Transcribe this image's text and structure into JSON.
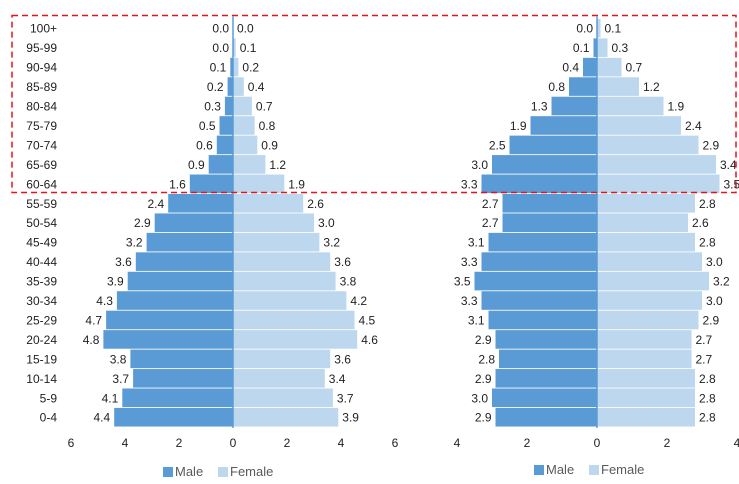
{
  "chart_data": [
    {
      "type": "bar",
      "orientation": "horizontal",
      "categories": [
        "0-4",
        "5-9",
        "10-14",
        "15-19",
        "20-24",
        "25-29",
        "30-34",
        "35-39",
        "40-44",
        "45-49",
        "50-54",
        "55-59",
        "60-64",
        "65-69",
        "70-74",
        "75-79",
        "80-84",
        "85-89",
        "90-94",
        "95-99",
        "100+"
      ],
      "series": [
        {
          "name": "Male",
          "values": [
            4.4,
            4.1,
            3.7,
            3.8,
            4.8,
            4.7,
            4.3,
            3.9,
            3.6,
            3.2,
            2.9,
            2.4,
            1.6,
            0.9,
            0.6,
            0.5,
            0.3,
            0.2,
            0.1,
            0.0,
            0.0
          ]
        },
        {
          "name": "Female",
          "values": [
            3.9,
            3.7,
            3.4,
            3.6,
            4.6,
            4.5,
            4.2,
            3.8,
            3.6,
            3.2,
            3.0,
            2.6,
            1.9,
            1.2,
            0.9,
            0.8,
            0.7,
            0.4,
            0.2,
            0.1,
            0.0
          ]
        }
      ],
      "xticks": [
        "6",
        "4",
        "2",
        "0",
        "2",
        "4",
        "6"
      ],
      "xlim": [
        -6,
        6
      ],
      "legend": [
        "Male",
        "Female"
      ],
      "legend_position": "bottom",
      "colors": {
        "male": "#5b9bd5",
        "female": "#bdd7ee"
      }
    },
    {
      "type": "bar",
      "orientation": "horizontal",
      "categories": [
        "0-4",
        "5-9",
        "10-14",
        "15-19",
        "20-24",
        "25-29",
        "30-34",
        "35-39",
        "40-44",
        "45-49",
        "50-54",
        "55-59",
        "60-64",
        "65-69",
        "70-74",
        "75-79",
        "80-84",
        "85-89",
        "90-94",
        "95-99",
        "100+"
      ],
      "series": [
        {
          "name": "Male",
          "values": [
            2.9,
            3.0,
            2.9,
            2.8,
            2.9,
            3.1,
            3.3,
            3.5,
            3.3,
            3.1,
            2.7,
            2.7,
            3.3,
            3.0,
            2.5,
            1.9,
            1.3,
            0.8,
            0.4,
            0.1,
            0.0
          ]
        },
        {
          "name": "Female",
          "values": [
            2.8,
            2.8,
            2.8,
            2.7,
            2.7,
            2.9,
            3.0,
            3.2,
            3.0,
            2.8,
            2.6,
            2.8,
            3.5,
            3.4,
            2.9,
            2.4,
            1.9,
            1.2,
            0.7,
            0.3,
            0.1
          ]
        }
      ],
      "xticks": [
        "4",
        "2",
        "0",
        "2",
        "4"
      ],
      "xlim": [
        -4,
        4
      ],
      "legend": [
        "Male",
        "Female"
      ],
      "legend_position": "bottom",
      "colors": {
        "male": "#5b9bd5",
        "female": "#bdd7ee"
      }
    }
  ],
  "highlight": {
    "color": "#e8121b",
    "style": "dashed",
    "from_category": "60-64",
    "to_category": "100+"
  }
}
